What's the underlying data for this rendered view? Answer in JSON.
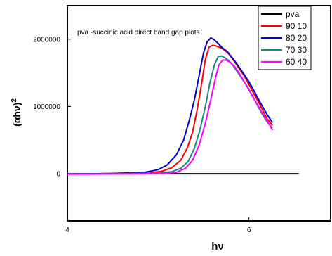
{
  "chart_data": {
    "type": "line",
    "annotation": "pva -succinic acid direct band gap plots",
    "xlabel": "hν",
    "ylabel_base": "(αhν)",
    "ylabel_exp": "2",
    "xlim": [
      4,
      6.9
    ],
    "ylim": [
      -700000,
      2500000
    ],
    "x_ticks": [
      4,
      6
    ],
    "y_ticks": [
      0,
      1000000,
      2000000
    ],
    "y_tick_labels": [
      "0",
      "1000000",
      "2000000"
    ],
    "legend_position": "top-right",
    "series": [
      {
        "name": "pva",
        "color": "#000000",
        "points": [
          [
            4.0,
            0
          ],
          [
            4.5,
            0
          ],
          [
            5.0,
            0
          ],
          [
            5.5,
            0
          ],
          [
            6.0,
            0
          ],
          [
            6.5,
            0
          ],
          [
            6.55,
            0
          ]
        ]
      },
      {
        "name": "90 10",
        "color": "#ff0000",
        "points": [
          [
            4.0,
            -5000
          ],
          [
            4.5,
            0
          ],
          [
            4.9,
            10000
          ],
          [
            5.05,
            40000
          ],
          [
            5.15,
            90000
          ],
          [
            5.25,
            200000
          ],
          [
            5.32,
            380000
          ],
          [
            5.38,
            620000
          ],
          [
            5.43,
            950000
          ],
          [
            5.48,
            1350000
          ],
          [
            5.52,
            1700000
          ],
          [
            5.56,
            1880000
          ],
          [
            5.6,
            1910000
          ],
          [
            5.64,
            1900000
          ],
          [
            5.68,
            1880000
          ],
          [
            5.72,
            1850000
          ],
          [
            5.78,
            1780000
          ],
          [
            5.85,
            1650000
          ],
          [
            5.9,
            1550000
          ],
          [
            5.95,
            1450000
          ],
          [
            6.0,
            1330000
          ],
          [
            6.05,
            1200000
          ],
          [
            6.1,
            1080000
          ],
          [
            6.15,
            950000
          ],
          [
            6.2,
            820000
          ],
          [
            6.26,
            720000
          ]
        ]
      },
      {
        "name": "80 20",
        "color": "#0000cc",
        "points": [
          [
            4.0,
            -5000
          ],
          [
            4.5,
            5000
          ],
          [
            4.85,
            20000
          ],
          [
            5.0,
            60000
          ],
          [
            5.1,
            130000
          ],
          [
            5.2,
            280000
          ],
          [
            5.28,
            500000
          ],
          [
            5.34,
            780000
          ],
          [
            5.4,
            1100000
          ],
          [
            5.45,
            1450000
          ],
          [
            5.5,
            1800000
          ],
          [
            5.54,
            1960000
          ],
          [
            5.58,
            2020000
          ],
          [
            5.62,
            1990000
          ],
          [
            5.66,
            1940000
          ],
          [
            5.7,
            1880000
          ],
          [
            5.76,
            1820000
          ],
          [
            5.82,
            1720000
          ],
          [
            5.88,
            1610000
          ],
          [
            5.94,
            1490000
          ],
          [
            6.0,
            1370000
          ],
          [
            6.05,
            1250000
          ],
          [
            6.1,
            1120000
          ],
          [
            6.15,
            1000000
          ],
          [
            6.2,
            880000
          ],
          [
            6.26,
            760000
          ]
        ]
      },
      {
        "name": "70 30",
        "color": "#1a8a7a",
        "points": [
          [
            4.0,
            -5000
          ],
          [
            4.5,
            0
          ],
          [
            5.0,
            10000
          ],
          [
            5.15,
            30000
          ],
          [
            5.25,
            80000
          ],
          [
            5.33,
            180000
          ],
          [
            5.4,
            380000
          ],
          [
            5.46,
            650000
          ],
          [
            5.52,
            1000000
          ],
          [
            5.57,
            1350000
          ],
          [
            5.62,
            1620000
          ],
          [
            5.66,
            1740000
          ],
          [
            5.7,
            1750000
          ],
          [
            5.74,
            1720000
          ],
          [
            5.78,
            1680000
          ],
          [
            5.82,
            1620000
          ],
          [
            5.88,
            1500000
          ],
          [
            5.94,
            1380000
          ],
          [
            6.0,
            1260000
          ],
          [
            6.05,
            1130000
          ],
          [
            6.1,
            1000000
          ],
          [
            6.15,
            880000
          ],
          [
            6.2,
            770000
          ],
          [
            6.26,
            680000
          ]
        ]
      },
      {
        "name": "60 40",
        "color": "#ff00ff",
        "points": [
          [
            4.0,
            -8000
          ],
          [
            4.5,
            -5000
          ],
          [
            5.0,
            0
          ],
          [
            5.2,
            20000
          ],
          [
            5.3,
            80000
          ],
          [
            5.38,
            200000
          ],
          [
            5.45,
            420000
          ],
          [
            5.52,
            750000
          ],
          [
            5.58,
            1100000
          ],
          [
            5.63,
            1420000
          ],
          [
            5.67,
            1620000
          ],
          [
            5.71,
            1690000
          ],
          [
            5.75,
            1690000
          ],
          [
            5.79,
            1660000
          ],
          [
            5.84,
            1600000
          ],
          [
            5.9,
            1480000
          ],
          [
            5.96,
            1340000
          ],
          [
            6.02,
            1200000
          ],
          [
            6.08,
            1060000
          ],
          [
            6.14,
            920000
          ],
          [
            6.2,
            790000
          ],
          [
            6.26,
            650000
          ]
        ]
      }
    ]
  }
}
